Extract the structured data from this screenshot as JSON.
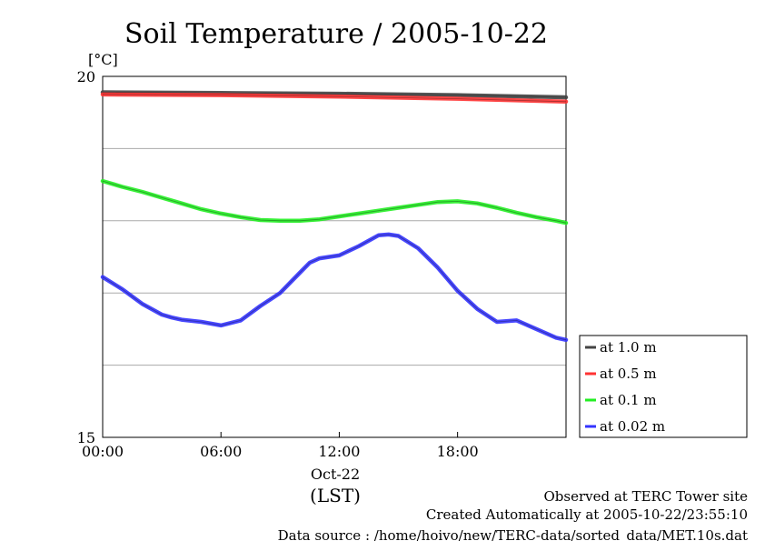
{
  "chart_data": {
    "type": "line",
    "title": "Soil Temperature / 2005-10-22",
    "unit_label": "[°C]",
    "ylim": [
      15,
      20
    ],
    "yticks": [
      15,
      20
    ],
    "y_gridlines": [
      16,
      17,
      18,
      19
    ],
    "xlim_hours": [
      0,
      23.5
    ],
    "xticks": [
      {
        "hour": 0,
        "label": "00:00"
      },
      {
        "hour": 6,
        "label": "06:00"
      },
      {
        "hour": 12,
        "label": "12:00"
      },
      {
        "hour": 18,
        "label": "18:00"
      }
    ],
    "date_label": "Oct-22",
    "timezone_label": "(LST)",
    "grid": "horizontal",
    "legend_position": "right",
    "series": [
      {
        "name": "at 1.0 m",
        "color": "#444444",
        "x": [
          0,
          6,
          12,
          18,
          23.5
        ],
        "y": [
          19.78,
          19.77,
          19.76,
          19.74,
          19.71
        ]
      },
      {
        "name": "at 0.5 m",
        "color": "#ff3333",
        "x": [
          0,
          6,
          12,
          18,
          23.5
        ],
        "y": [
          19.75,
          19.74,
          19.72,
          19.69,
          19.65
        ]
      },
      {
        "name": "at 0.1 m",
        "color": "#22ee22",
        "x": [
          0,
          1,
          2,
          3,
          4,
          5,
          6,
          7,
          8,
          9,
          10,
          11,
          12,
          13,
          14,
          15,
          16,
          17,
          18,
          19,
          20,
          21,
          22,
          23,
          23.5
        ],
        "y": [
          18.55,
          18.47,
          18.4,
          18.32,
          18.24,
          18.16,
          18.1,
          18.05,
          18.01,
          18.0,
          18.0,
          18.02,
          18.06,
          18.1,
          18.14,
          18.18,
          18.22,
          18.26,
          18.27,
          18.24,
          18.18,
          18.11,
          18.05,
          18.0,
          17.97
        ]
      },
      {
        "name": "at 0.02 m",
        "color": "#3333ff",
        "x": [
          0,
          1,
          2,
          3,
          3.5,
          4,
          5,
          6,
          7,
          8,
          9,
          10,
          10.5,
          11,
          12,
          13,
          14,
          14.5,
          15,
          16,
          17,
          18,
          19,
          20,
          21,
          22,
          23,
          23.5
        ],
        "y": [
          17.22,
          17.05,
          16.85,
          16.7,
          16.66,
          16.63,
          16.6,
          16.55,
          16.62,
          16.82,
          17.0,
          17.28,
          17.42,
          17.48,
          17.52,
          17.65,
          17.8,
          17.81,
          17.79,
          17.62,
          17.35,
          17.03,
          16.78,
          16.6,
          16.62,
          16.5,
          16.38,
          16.35
        ]
      }
    ]
  },
  "footer": {
    "observed": "Observed at TERC Tower site",
    "created": "Created Automatically at 2005-10-22/23:55:10",
    "source": "Data source : /home/hoivo/new/TERC-data/sorted_data/MET.10s.dat"
  }
}
